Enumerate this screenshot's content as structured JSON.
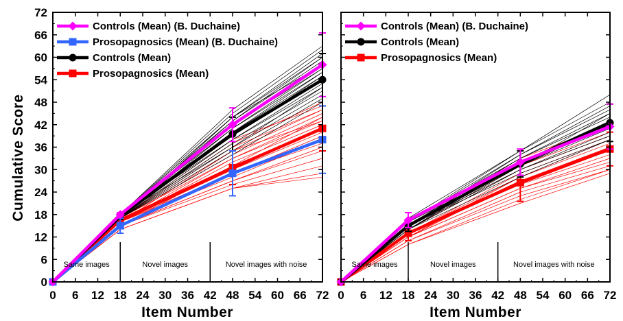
{
  "colors": {
    "controls_duchaine": "#ff00ff",
    "prosopagnosics_duchaine": "#3366ff",
    "controls_mean": "#000000",
    "prosopagnosics_mean": "#ff0000",
    "individual_controls": "#000000",
    "individual_prosopagnosics": "#ff0000"
  },
  "chart_data": [
    {
      "type": "line",
      "panel": "left",
      "xlabel": "Item Number",
      "ylabel": "Cumulative Score",
      "xlim": [
        0,
        72
      ],
      "ylim": [
        0,
        72
      ],
      "xticks": [
        "0",
        "6",
        "12",
        "18",
        "24",
        "30",
        "36",
        "42",
        "48",
        "54",
        "60",
        "66",
        "72"
      ],
      "yticks": [
        "0",
        "6",
        "12",
        "18",
        "24",
        "30",
        "36",
        "42",
        "48",
        "54",
        "60",
        "66",
        "72"
      ],
      "x": [
        0,
        18,
        48,
        72
      ],
      "sections": [
        {
          "label": "Same images",
          "boundary_x": 18
        },
        {
          "label": "Novel images",
          "boundary_x": 42
        },
        {
          "label": "Novel images with noise",
          "boundary_x": 72
        }
      ],
      "legend_position": "top-left",
      "series": [
        {
          "name": "Controls (Mean) (B. Duchaine)",
          "color": "#ff00ff",
          "marker": "diamond",
          "values": [
            0,
            18,
            42,
            58
          ],
          "error": [
            0,
            0.5,
            4.5,
            8.5
          ]
        },
        {
          "name": "Prosopagnosics (Mean) (B. Duchaine)",
          "color": "#3366ff",
          "marker": "square",
          "values": [
            0,
            15,
            29,
            38
          ],
          "error": [
            0,
            2,
            6,
            9
          ]
        },
        {
          "name": "Controls (Mean)",
          "color": "#000000",
          "marker": "circle",
          "values": [
            0,
            17.5,
            39.5,
            54
          ],
          "error": [
            0,
            0.8,
            4.5,
            7
          ]
        },
        {
          "name": "Prosopagnosics (Mean)",
          "color": "#ff0000",
          "marker": "square",
          "values": [
            0,
            16.5,
            30.5,
            41
          ],
          "error": [
            0,
            1.5,
            4.5,
            6
          ]
        }
      ],
      "individual_controls": [
        [
          0,
          18,
          46,
          63
        ],
        [
          0,
          18,
          45,
          62
        ],
        [
          0,
          18,
          44,
          61
        ],
        [
          0,
          17,
          44,
          60
        ],
        [
          0,
          18,
          43,
          60
        ],
        [
          0,
          17,
          43,
          59
        ],
        [
          0,
          18,
          42,
          58
        ],
        [
          0,
          17,
          42,
          57
        ],
        [
          0,
          18,
          41,
          57
        ],
        [
          0,
          17,
          41,
          56
        ],
        [
          0,
          18,
          40,
          56
        ],
        [
          0,
          17,
          40,
          55
        ],
        [
          0,
          18,
          39,
          54
        ],
        [
          0,
          17,
          38,
          53
        ],
        [
          0,
          18,
          38,
          52
        ],
        [
          0,
          17,
          37,
          51
        ],
        [
          0,
          18,
          36,
          50
        ],
        [
          0,
          17,
          35,
          49
        ],
        [
          0,
          17,
          34,
          48
        ],
        [
          0,
          18,
          39,
          55
        ],
        [
          0,
          17,
          36,
          52
        ],
        [
          0,
          18,
          44,
          58
        ]
      ],
      "individual_prosopagnosics": [
        [
          0,
          17,
          37,
          48
        ],
        [
          0,
          17,
          36,
          46
        ],
        [
          0,
          16,
          35,
          46
        ],
        [
          0,
          17,
          34,
          45
        ],
        [
          0,
          16,
          33,
          44
        ],
        [
          0,
          17,
          33,
          43
        ],
        [
          0,
          16,
          32,
          42
        ],
        [
          0,
          16,
          31,
          41
        ],
        [
          0,
          16,
          30,
          41
        ],
        [
          0,
          16,
          30,
          40
        ],
        [
          0,
          15,
          29,
          39
        ],
        [
          0,
          16,
          28,
          38
        ],
        [
          0,
          15,
          27,
          36
        ],
        [
          0,
          15,
          27,
          35
        ],
        [
          0,
          15,
          26,
          33
        ],
        [
          0,
          14,
          25,
          31
        ],
        [
          0,
          14,
          25,
          29
        ],
        [
          0,
          14,
          25,
          28
        ],
        [
          0,
          17,
          35,
          43
        ],
        [
          0,
          16,
          29,
          37
        ],
        [
          0,
          15,
          31,
          44
        ],
        [
          0,
          17,
          38,
          47
        ]
      ]
    },
    {
      "type": "line",
      "panel": "right",
      "xlabel": "Item Number",
      "ylabel": "",
      "xlim": [
        0,
        72
      ],
      "ylim": [
        0,
        72
      ],
      "xticks": [
        "0",
        "6",
        "12",
        "18",
        "24",
        "30",
        "36",
        "42",
        "48",
        "54",
        "60",
        "66",
        "72"
      ],
      "yticks": [],
      "x": [
        0,
        18,
        48,
        72
      ],
      "sections": [
        {
          "label": "Same images",
          "boundary_x": 18
        },
        {
          "label": "Novel images",
          "boundary_x": 42
        },
        {
          "label": "Novel images with noise",
          "boundary_x": 72
        }
      ],
      "legend_position": "top-left",
      "series": [
        {
          "name": "Controls (Mean) (B. Duchaine)",
          "color": "#ff00ff",
          "marker": "diamond",
          "values": [
            0,
            16.5,
            32,
            41.5
          ],
          "error": [
            0,
            2,
            3.5,
            6
          ]
        },
        {
          "name": "Controls (Mean)",
          "color": "#000000",
          "marker": "circle",
          "values": [
            0,
            15,
            31.5,
            42.5
          ],
          "error": [
            0,
            1.5,
            3.5,
            5
          ]
        },
        {
          "name": "Prosopagnosics (Mean)",
          "color": "#ff0000",
          "marker": "square",
          "values": [
            0,
            13,
            26.5,
            35.5
          ],
          "error": [
            0,
            2,
            5,
            4.5
          ]
        }
      ],
      "individual_controls": [
        [
          0,
          17,
          35,
          50
        ],
        [
          0,
          16,
          35,
          48
        ],
        [
          0,
          16,
          34,
          47
        ],
        [
          0,
          15,
          34,
          46
        ],
        [
          0,
          16,
          33,
          45
        ],
        [
          0,
          15,
          33,
          44
        ],
        [
          0,
          15,
          32,
          43
        ],
        [
          0,
          14,
          32,
          42
        ],
        [
          0,
          15,
          31,
          42
        ],
        [
          0,
          14,
          31,
          41
        ],
        [
          0,
          15,
          30,
          40
        ],
        [
          0,
          14,
          30,
          39
        ],
        [
          0,
          15,
          29,
          38
        ],
        [
          0,
          14,
          28,
          38
        ],
        [
          0,
          16,
          31,
          45
        ]
      ],
      "individual_prosopagnosics": [
        [
          0,
          15,
          33,
          42
        ],
        [
          0,
          14,
          31,
          40
        ],
        [
          0,
          14,
          30,
          39
        ],
        [
          0,
          13,
          29,
          38
        ],
        [
          0,
          13,
          28,
          37
        ],
        [
          0,
          13,
          27,
          36
        ],
        [
          0,
          12,
          27,
          35
        ],
        [
          0,
          13,
          26,
          34
        ],
        [
          0,
          12,
          25,
          33
        ],
        [
          0,
          12,
          25,
          32
        ],
        [
          0,
          11,
          24,
          31
        ],
        [
          0,
          11,
          23,
          30
        ],
        [
          0,
          10,
          22,
          30
        ],
        [
          0,
          10,
          21,
          29
        ],
        [
          0,
          12,
          28,
          38
        ]
      ]
    }
  ]
}
